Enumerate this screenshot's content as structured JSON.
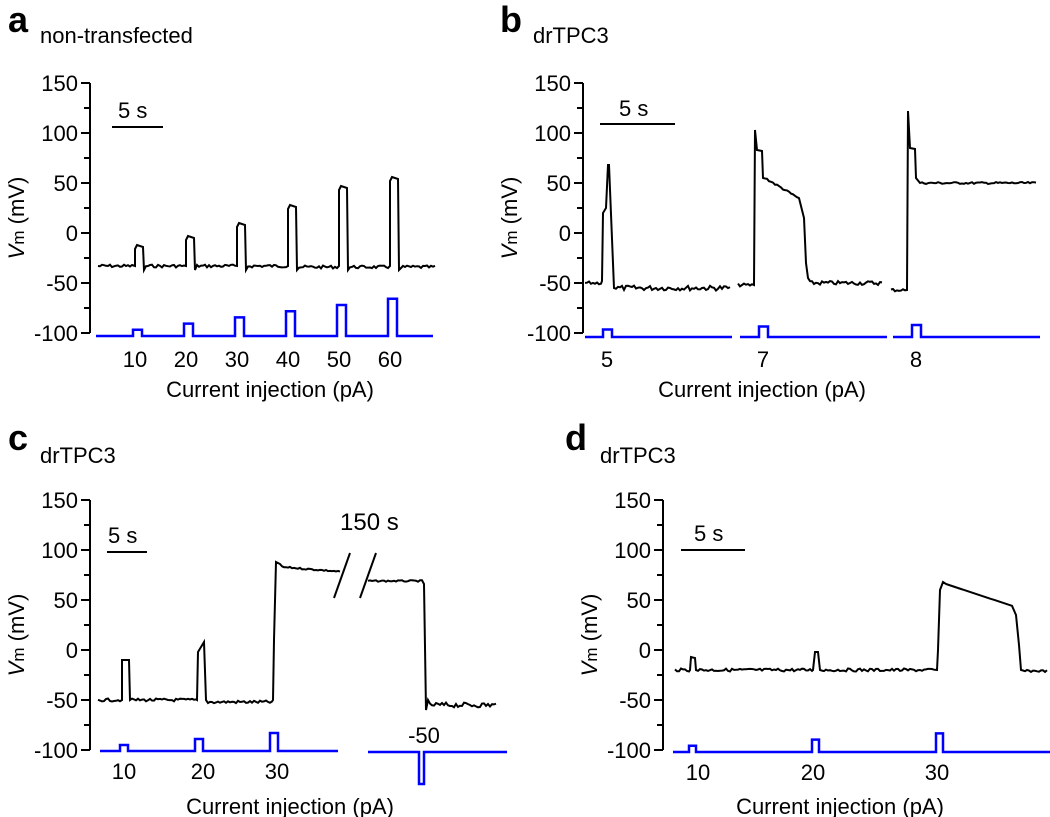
{
  "figure": {
    "panels": [
      {
        "letter": "a",
        "title": "non-transfected"
      },
      {
        "letter": "b",
        "title": "drTPC3"
      },
      {
        "letter": "c",
        "title": "drTPC3"
      },
      {
        "letter": "d",
        "title": "drTPC3"
      }
    ]
  },
  "chart_data": [
    {
      "type": "line",
      "panel": "a",
      "title": "non-transfected",
      "ylabel_main": "V",
      "ylabel_sub": "m",
      "ylabel_unit": " (mV)",
      "xlabel": "Current injection (pA)",
      "ylim": [
        -100,
        150
      ],
      "yticks": [
        150,
        100,
        50,
        0,
        -50,
        -100
      ],
      "scalebar": "5 s",
      "stimulus_color": "#0000ff",
      "trace_color": "#000000",
      "stimuli": [
        {
          "label": "10",
          "amp_pA": 10
        },
        {
          "label": "20",
          "amp_pA": 20
        },
        {
          "label": "30",
          "amp_pA": 30
        },
        {
          "label": "40",
          "amp_pA": 40
        },
        {
          "label": "50",
          "amp_pA": 50
        },
        {
          "label": "60",
          "amp_pA": 60
        }
      ],
      "baseline_mV": -33,
      "response_peaks_mV": [
        -12,
        -3,
        10,
        28,
        47,
        56
      ]
    },
    {
      "type": "line",
      "panel": "b",
      "title": "drTPC3",
      "ylabel_main": "V",
      "ylabel_sub": "m",
      "ylabel_unit": " (mV)",
      "xlabel": "Current injection (pA)",
      "ylim": [
        -100,
        150
      ],
      "yticks": [
        150,
        100,
        50,
        0,
        -50,
        -100
      ],
      "scalebar": "5 s",
      "stimuli": [
        {
          "label": "5",
          "amp_pA": 5
        },
        {
          "label": "7",
          "amp_pA": 7
        },
        {
          "label": "8",
          "amp_pA": 8
        }
      ],
      "segments": [
        {
          "baseline_mV": -50,
          "peak_mV": 68,
          "end_mV": -60
        },
        {
          "baseline_mV": -52,
          "peak_mV": 103,
          "plateau_mV": 35,
          "end_mV": -52
        },
        {
          "baseline_mV": -57,
          "peak_mV": 122,
          "plateau_mV": 50,
          "end_mV": 50
        }
      ]
    },
    {
      "type": "line",
      "panel": "c",
      "title": "drTPC3",
      "ylabel_main": "V",
      "ylabel_sub": "m",
      "ylabel_unit": " (mV)",
      "xlabel": "Current injection (pA)",
      "ylim": [
        -100,
        150
      ],
      "yticks": [
        150,
        100,
        50,
        0,
        -50,
        -100
      ],
      "scalebar": "5 s",
      "break_label": "150 s",
      "stimuli": [
        {
          "label": "10",
          "amp_pA": 10
        },
        {
          "label": "20",
          "amp_pA": 20
        },
        {
          "label": "30",
          "amp_pA": 30
        },
        {
          "label": "-50",
          "amp_pA": -50
        }
      ],
      "baseline_mV": -50,
      "response_peaks_mV": [
        -10,
        5,
        88
      ],
      "plateau_after_break_mV": 68,
      "end_mV": -55
    },
    {
      "type": "line",
      "panel": "d",
      "title": "drTPC3",
      "ylabel_main": "V",
      "ylabel_sub": "m",
      "ylabel_unit": " (mV)",
      "xlabel": "Current injection (pA)",
      "ylim": [
        -100,
        150
      ],
      "yticks": [
        150,
        100,
        50,
        0,
        -50,
        -100
      ],
      "scalebar": "5 s",
      "stimuli": [
        {
          "label": "10",
          "amp_pA": 10
        },
        {
          "label": "20",
          "amp_pA": 20
        },
        {
          "label": "30",
          "amp_pA": 30
        }
      ],
      "baseline_mV": -20,
      "response_peaks_mV": [
        -7,
        -2,
        68
      ],
      "end_mV": -21
    }
  ]
}
